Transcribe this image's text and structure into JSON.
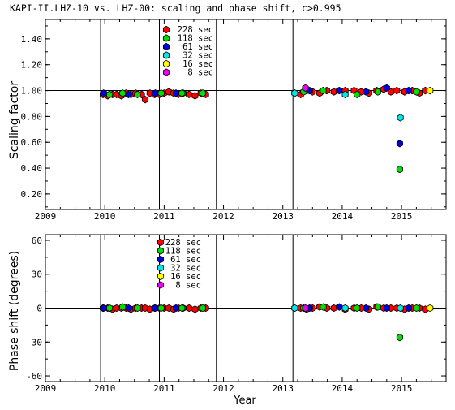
{
  "chart_data": [
    {
      "type": "scatter",
      "title": "KAPI-II.LHZ-10 vs. LHZ-00: scaling and phase shift, c>0.995",
      "xlabel": "",
      "ylabel": "Scaling factor",
      "xlim": [
        2009.0,
        2015.75
      ],
      "ylim": [
        0.08,
        1.55
      ],
      "x_ticks": [
        2009,
        2010,
        2011,
        2012,
        2013,
        2014,
        2015
      ],
      "x_tick_labels": [
        "2009",
        "2010",
        "2011",
        "2012",
        "2013",
        "2014",
        "2015"
      ],
      "y_ticks": [
        0.2,
        0.4,
        0.6,
        0.8,
        1.0,
        1.2,
        1.4
      ],
      "y_tick_labels": [
        "0.20",
        "0.40",
        "0.60",
        "0.80",
        "1.00",
        "1.20",
        "1.40"
      ],
      "reference_line": 1.0,
      "vertical_markers": [
        2009.93,
        2010.92,
        2011.88,
        2013.17
      ],
      "legend": [
        "228 sec",
        "118 sec",
        "61 sec",
        "32 sec",
        "16 sec",
        "8 sec"
      ],
      "legend_position": "top-left",
      "series": [
        {
          "name": "228 sec",
          "color": "#ff0000",
          "x": [
            2009.97,
            2010.05,
            2010.13,
            2010.2,
            2010.28,
            2010.36,
            2010.44,
            2010.52,
            2010.62,
            2010.68,
            2010.76,
            2010.84,
            2010.92,
            2011.0,
            2011.08,
            2011.16,
            2011.24,
            2011.32,
            2011.42,
            2011.52,
            2011.62,
            2011.7,
            2013.2,
            2013.3,
            2013.4,
            2013.5,
            2013.62,
            2013.74,
            2013.86,
            2014.05,
            2014.2,
            2014.32,
            2014.45,
            2014.58,
            2014.7,
            2014.82,
            2014.92,
            2015.05,
            2015.18,
            2015.3,
            2015.4
          ],
          "y": [
            0.97,
            0.96,
            0.97,
            0.97,
            0.96,
            0.98,
            0.97,
            0.98,
            0.97,
            0.93,
            0.98,
            0.97,
            0.97,
            0.98,
            0.99,
            0.98,
            0.97,
            0.98,
            0.97,
            0.96,
            0.98,
            0.97,
            0.98,
            0.97,
            1.0,
            0.99,
            0.98,
            1.0,
            0.99,
            1.0,
            1.0,
            0.99,
            0.98,
            1.0,
            1.01,
            0.99,
            1.0,
            0.99,
            1.0,
            0.98,
            1.0
          ]
        },
        {
          "name": "118 sec",
          "color": "#00dd00",
          "x": [
            2010.08,
            2010.3,
            2010.55,
            2010.95,
            2011.3,
            2011.65,
            2013.35,
            2013.68,
            2014.25,
            2014.6,
            2014.97,
            2015.25
          ],
          "y": [
            0.97,
            0.98,
            0.97,
            0.98,
            0.98,
            0.98,
            0.99,
            1.0,
            0.97,
            0.99,
            0.39,
            0.99
          ]
        },
        {
          "name": "61 sec",
          "color": "#0000dd",
          "x": [
            2009.98,
            2010.4,
            2010.85,
            2011.2,
            2013.45,
            2013.95,
            2014.4,
            2014.75,
            2014.97,
            2015.12
          ],
          "y": [
            0.98,
            0.97,
            0.98,
            0.98,
            1.0,
            1.0,
            0.99,
            1.02,
            0.59,
            1.0
          ]
        },
        {
          "name": "32 sec",
          "color": "#00e5e5",
          "x": [
            2013.2,
            2014.05,
            2014.98
          ],
          "y": [
            0.98,
            0.97,
            0.79
          ]
        },
        {
          "name": "16 sec",
          "color": "#ffff00",
          "x": [
            2015.48
          ],
          "y": [
            1.0
          ]
        },
        {
          "name": "8 sec",
          "color": "#ee00ee",
          "x": [
            2013.38
          ],
          "y": [
            1.02
          ]
        }
      ]
    },
    {
      "type": "scatter",
      "title": "",
      "xlabel": "Year",
      "ylabel": "Phase shift (degrees)",
      "xlim": [
        2009.0,
        2015.75
      ],
      "ylim": [
        -65,
        65
      ],
      "x_ticks": [
        2009,
        2010,
        2011,
        2012,
        2013,
        2014,
        2015
      ],
      "x_tick_labels": [
        "2009",
        "2010",
        "2011",
        "2012",
        "2013",
        "2014",
        "2015"
      ],
      "y_ticks": [
        -60,
        -30,
        0,
        30,
        60
      ],
      "y_tick_labels": [
        "-60",
        "-30",
        "0",
        "30",
        "60"
      ],
      "reference_line": 0,
      "vertical_markers": [
        2009.93,
        2010.92,
        2011.88,
        2013.17
      ],
      "legend": [
        "228 sec",
        "118 sec",
        "61 sec",
        "32 sec",
        "16 sec",
        "8 sec"
      ],
      "legend_position": "top-left",
      "series": [
        {
          "name": "228 sec",
          "color": "#ff0000",
          "x": [
            2009.97,
            2010.05,
            2010.13,
            2010.2,
            2010.28,
            2010.36,
            2010.44,
            2010.52,
            2010.62,
            2010.68,
            2010.76,
            2010.84,
            2010.92,
            2011.0,
            2011.08,
            2011.16,
            2011.24,
            2011.32,
            2011.42,
            2011.52,
            2011.62,
            2011.7,
            2013.2,
            2013.3,
            2013.4,
            2013.5,
            2013.62,
            2013.74,
            2013.86,
            2014.05,
            2014.2,
            2014.32,
            2014.45,
            2014.58,
            2014.7,
            2014.82,
            2014.92,
            2015.05,
            2015.18,
            2015.3,
            2015.4
          ],
          "y": [
            0,
            0,
            -1,
            0,
            0,
            0,
            -1,
            0,
            0,
            0,
            -1,
            0,
            0,
            0,
            0,
            -1,
            0,
            0,
            0,
            -1,
            0,
            0,
            0,
            0,
            -1,
            0,
            1,
            0,
            0,
            -1,
            0,
            0,
            -1,
            1,
            0,
            0,
            0,
            -1,
            0,
            0,
            -1
          ]
        },
        {
          "name": "118 sec",
          "color": "#00dd00",
          "x": [
            2010.08,
            2010.3,
            2010.55,
            2010.95,
            2011.3,
            2011.65,
            2013.35,
            2013.68,
            2014.25,
            2014.6,
            2014.97,
            2015.25
          ],
          "y": [
            0,
            1,
            0,
            0,
            0,
            0,
            0,
            1,
            0,
            1,
            -26,
            0
          ]
        },
        {
          "name": "61 sec",
          "color": "#0000dd",
          "x": [
            2009.98,
            2010.4,
            2010.85,
            2011.2,
            2013.45,
            2013.95,
            2014.4,
            2014.75,
            2015.12
          ],
          "y": [
            0,
            0,
            0,
            0,
            0,
            1,
            0,
            0,
            0
          ]
        },
        {
          "name": "32 sec",
          "color": "#00e5e5",
          "x": [
            2013.2,
            2014.05,
            2014.98
          ],
          "y": [
            0,
            0,
            0
          ]
        },
        {
          "name": "16 sec",
          "color": "#ffff00",
          "x": [
            2015.48
          ],
          "y": [
            0
          ]
        },
        {
          "name": "8 sec",
          "color": "#ee00ee",
          "x": [
            2013.38
          ],
          "y": [
            0
          ]
        }
      ]
    }
  ]
}
